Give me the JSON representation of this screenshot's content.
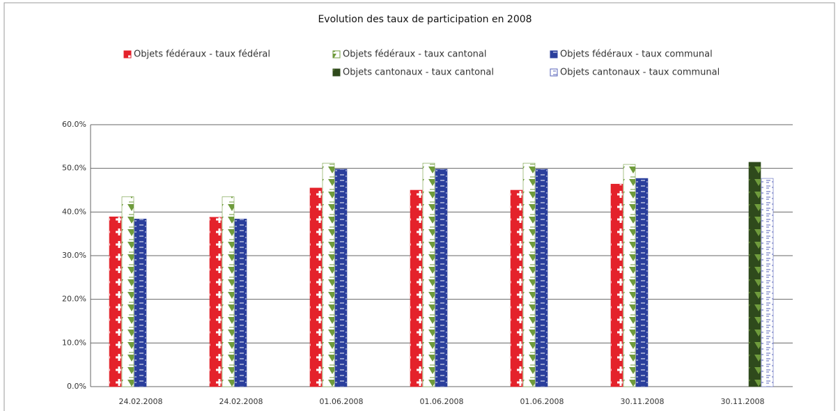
{
  "chart_data": {
    "type": "bar",
    "title": "Evolution des taux de participation en 2008",
    "categories": [
      "24.02.2008",
      "24.02.2008",
      "01.06.2008",
      "01.06.2008",
      "01.06.2008",
      "30.11.2008",
      "30.11.2008"
    ],
    "series": [
      {
        "name": "Objets fédéraux - taux fédéral",
        "color": "#e4222b",
        "values": [
          38.9,
          38.8,
          45.5,
          45.0,
          45.0,
          46.4,
          null
        ]
      },
      {
        "name": "Objets fédéraux - taux cantonal",
        "color": "#6f9b3c",
        "values": [
          43.5,
          43.5,
          51.2,
          51.2,
          51.2,
          50.9,
          null
        ]
      },
      {
        "name": "Objets fédéraux - taux communal",
        "color": "#2b3f9c",
        "values": [
          38.4,
          38.4,
          49.8,
          49.8,
          49.8,
          47.7,
          null
        ]
      },
      {
        "name": "Objets cantonaux - taux cantonal",
        "color": "#2f4a1c",
        "values": [
          null,
          null,
          null,
          null,
          null,
          null,
          51.4
        ]
      },
      {
        "name": "Objets cantonaux - taux communal",
        "color": "#5662b8",
        "values": [
          null,
          null,
          null,
          null,
          null,
          null,
          47.7
        ]
      }
    ],
    "ylim": [
      0,
      60
    ],
    "yticks": [
      {
        "value": 0,
        "label": "0.0%"
      },
      {
        "value": 10,
        "label": "10.0%"
      },
      {
        "value": 20,
        "label": "20.0%"
      },
      {
        "value": 30,
        "label": "30.0%"
      },
      {
        "value": 40,
        "label": "40.0%"
      },
      {
        "value": 50,
        "label": "50.0%"
      },
      {
        "value": 60,
        "label": "60.0%"
      }
    ],
    "grid": true,
    "legend": "top"
  }
}
